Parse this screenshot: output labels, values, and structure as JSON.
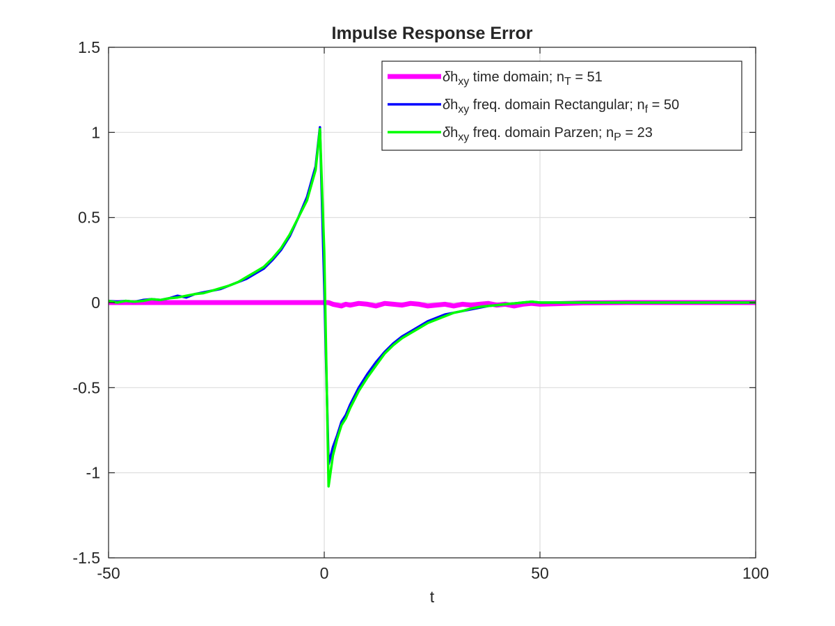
{
  "chart_data": {
    "type": "line",
    "title": "Impulse Response Error",
    "xlabel": "t",
    "ylabel": "",
    "xlim": [
      -50,
      100
    ],
    "ylim": [
      -1.5,
      1.5
    ],
    "xticks": [
      -50,
      0,
      50,
      100
    ],
    "xtick_labels": [
      "-50",
      "0",
      "50",
      "100"
    ],
    "yticks": [
      -1.5,
      -1,
      -0.5,
      0,
      0.5,
      1,
      1.5
    ],
    "ytick_labels": [
      "-1.5",
      "-1",
      "-0.5",
      "0",
      "0.5",
      "1",
      "1.5"
    ],
    "grid": true,
    "legend_position": "top-right",
    "series": [
      {
        "name": "δh_xy time domain; n_T = 51",
        "legend": {
          "symbol": "δ",
          "main": "h",
          "sub": "xy",
          "text": " time domain; n",
          "text_sub": "T",
          "tail": " = 51"
        },
        "color": "#ff00ff",
        "x": [
          -50,
          -40,
          -30,
          -20,
          -10,
          0,
          1,
          2,
          3,
          4,
          5,
          6,
          8,
          10,
          12,
          14,
          16,
          18,
          20,
          22,
          24,
          26,
          28,
          30,
          32,
          34,
          36,
          38,
          40,
          42,
          44,
          46,
          48,
          50,
          60,
          70,
          80,
          90,
          100
        ],
        "y": [
          0,
          0,
          0,
          0,
          0,
          0,
          0.0,
          -0.01,
          -0.015,
          -0.02,
          -0.01,
          -0.015,
          -0.005,
          -0.01,
          -0.02,
          -0.005,
          -0.01,
          -0.015,
          -0.005,
          -0.01,
          -0.02,
          -0.015,
          -0.01,
          -0.02,
          -0.01,
          -0.015,
          -0.01,
          -0.005,
          -0.015,
          -0.01,
          -0.02,
          -0.01,
          -0.005,
          -0.01,
          -0.002,
          0,
          0,
          0,
          0
        ]
      },
      {
        "name": "δh_xy freq. domain Rectangular; n_f = 50",
        "legend": {
          "symbol": "δ",
          "main": "h",
          "sub": "xy",
          "text": " freq. domain Rectangular; n",
          "text_sub": "f",
          "tail": " = 50"
        },
        "color": "#0000ff",
        "x": [
          -50,
          -48,
          -46,
          -44,
          -42,
          -40,
          -38,
          -36,
          -34,
          -32,
          -30,
          -28,
          -26,
          -24,
          -22,
          -20,
          -18,
          -16,
          -14,
          -12,
          -10,
          -8,
          -6,
          -4,
          -2,
          -1,
          0,
          1,
          2,
          3,
          4,
          5,
          6,
          8,
          10,
          12,
          14,
          16,
          18,
          20,
          22,
          24,
          26,
          28,
          30,
          32,
          34,
          36,
          38,
          40,
          42,
          44,
          46,
          48,
          50,
          60,
          70,
          80,
          90,
          100
        ],
        "y": [
          0.01,
          0.005,
          0.01,
          0.005,
          0.015,
          0.02,
          0.015,
          0.025,
          0.04,
          0.03,
          0.05,
          0.06,
          0.07,
          0.08,
          0.1,
          0.12,
          0.14,
          0.17,
          0.2,
          0.25,
          0.31,
          0.39,
          0.5,
          0.62,
          0.8,
          1.03,
          0.1,
          -0.95,
          -0.85,
          -0.78,
          -0.7,
          -0.66,
          -0.6,
          -0.5,
          -0.42,
          -0.35,
          -0.29,
          -0.24,
          -0.2,
          -0.17,
          -0.14,
          -0.11,
          -0.09,
          -0.07,
          -0.06,
          -0.05,
          -0.04,
          -0.03,
          -0.02,
          -0.015,
          -0.01,
          -0.005,
          0.0,
          0.005,
          0.0,
          0.0,
          0.0,
          0.0,
          0.0,
          0.0
        ]
      },
      {
        "name": "δh_xy freq. domain Parzen; n_P = 23",
        "legend": {
          "symbol": "δ",
          "main": "h",
          "sub": "xy",
          "text": " freq. domain Parzen; n",
          "text_sub": "P",
          "tail": " = 23"
        },
        "color": "#00ff00",
        "x": [
          -50,
          -48,
          -46,
          -44,
          -42,
          -40,
          -38,
          -36,
          -34,
          -32,
          -30,
          -28,
          -26,
          -24,
          -22,
          -20,
          -18,
          -16,
          -14,
          -12,
          -10,
          -8,
          -6,
          -4,
          -2,
          -1,
          0,
          1,
          2,
          3,
          4,
          5,
          6,
          8,
          10,
          12,
          14,
          16,
          18,
          20,
          22,
          24,
          26,
          28,
          30,
          32,
          34,
          36,
          38,
          40,
          42,
          44,
          46,
          48,
          50,
          60,
          70,
          80,
          90,
          100
        ],
        "y": [
          0.01,
          0.0,
          0.01,
          0.005,
          0.01,
          0.02,
          0.015,
          0.025,
          0.03,
          0.04,
          0.05,
          0.055,
          0.07,
          0.085,
          0.1,
          0.12,
          0.15,
          0.18,
          0.21,
          0.26,
          0.32,
          0.4,
          0.5,
          0.6,
          0.78,
          1.02,
          0.3,
          -1.08,
          -0.9,
          -0.8,
          -0.72,
          -0.68,
          -0.62,
          -0.52,
          -0.44,
          -0.37,
          -0.3,
          -0.25,
          -0.21,
          -0.18,
          -0.15,
          -0.12,
          -0.1,
          -0.08,
          -0.06,
          -0.05,
          -0.035,
          -0.025,
          -0.02,
          -0.015,
          -0.01,
          -0.005,
          0.0,
          0.005,
          0.0,
          0.0,
          0.0,
          0.0,
          0.0,
          0.0
        ]
      }
    ]
  }
}
